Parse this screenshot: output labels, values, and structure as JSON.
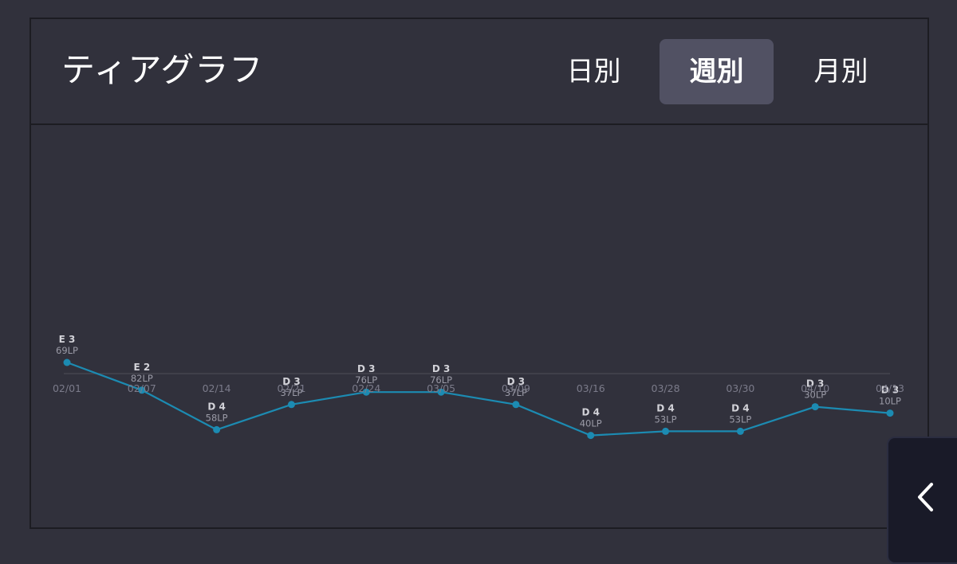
{
  "header": {
    "title": "ティアグラフ",
    "tabs": [
      {
        "label": "日別",
        "active": false
      },
      {
        "label": "週別",
        "active": true
      },
      {
        "label": "月別",
        "active": false
      }
    ]
  },
  "colors": {
    "line": "#1c8bb2",
    "point": "#1c8bb2",
    "tier_label": "#d2d2d8",
    "lp_label": "#9a9aa6",
    "tick_label": "#7b7b8a",
    "axis": "#45454f"
  },
  "side_button": {
    "icon": "chevron-left-icon"
  },
  "chart_data": {
    "type": "line",
    "categories": [
      "02/01",
      "02/07",
      "02/14",
      "02/21",
      "02/24",
      "03/05",
      "03/09",
      "03/16",
      "03/28",
      "03/30",
      "04/10",
      "04/13"
    ],
    "tiers": [
      "E 3",
      "E 2",
      "D 4",
      "D 3",
      "D 3",
      "D 3",
      "D 3",
      "D 4",
      "D 4",
      "D 4",
      "D 3",
      "D 3"
    ],
    "lp_labels": [
      "69LP",
      "82LP",
      "58LP",
      "37LP",
      "76LP",
      "76LP",
      "37LP",
      "40LP",
      "53LP",
      "53LP",
      "30LP",
      "10LP"
    ],
    "series": [
      {
        "values": [
          269,
          182,
          58,
          137,
          176,
          176,
          137,
          40,
          53,
          53,
          130,
          110
        ]
      }
    ],
    "ylim": [
      -500,
      500
    ],
    "grid": false
  }
}
